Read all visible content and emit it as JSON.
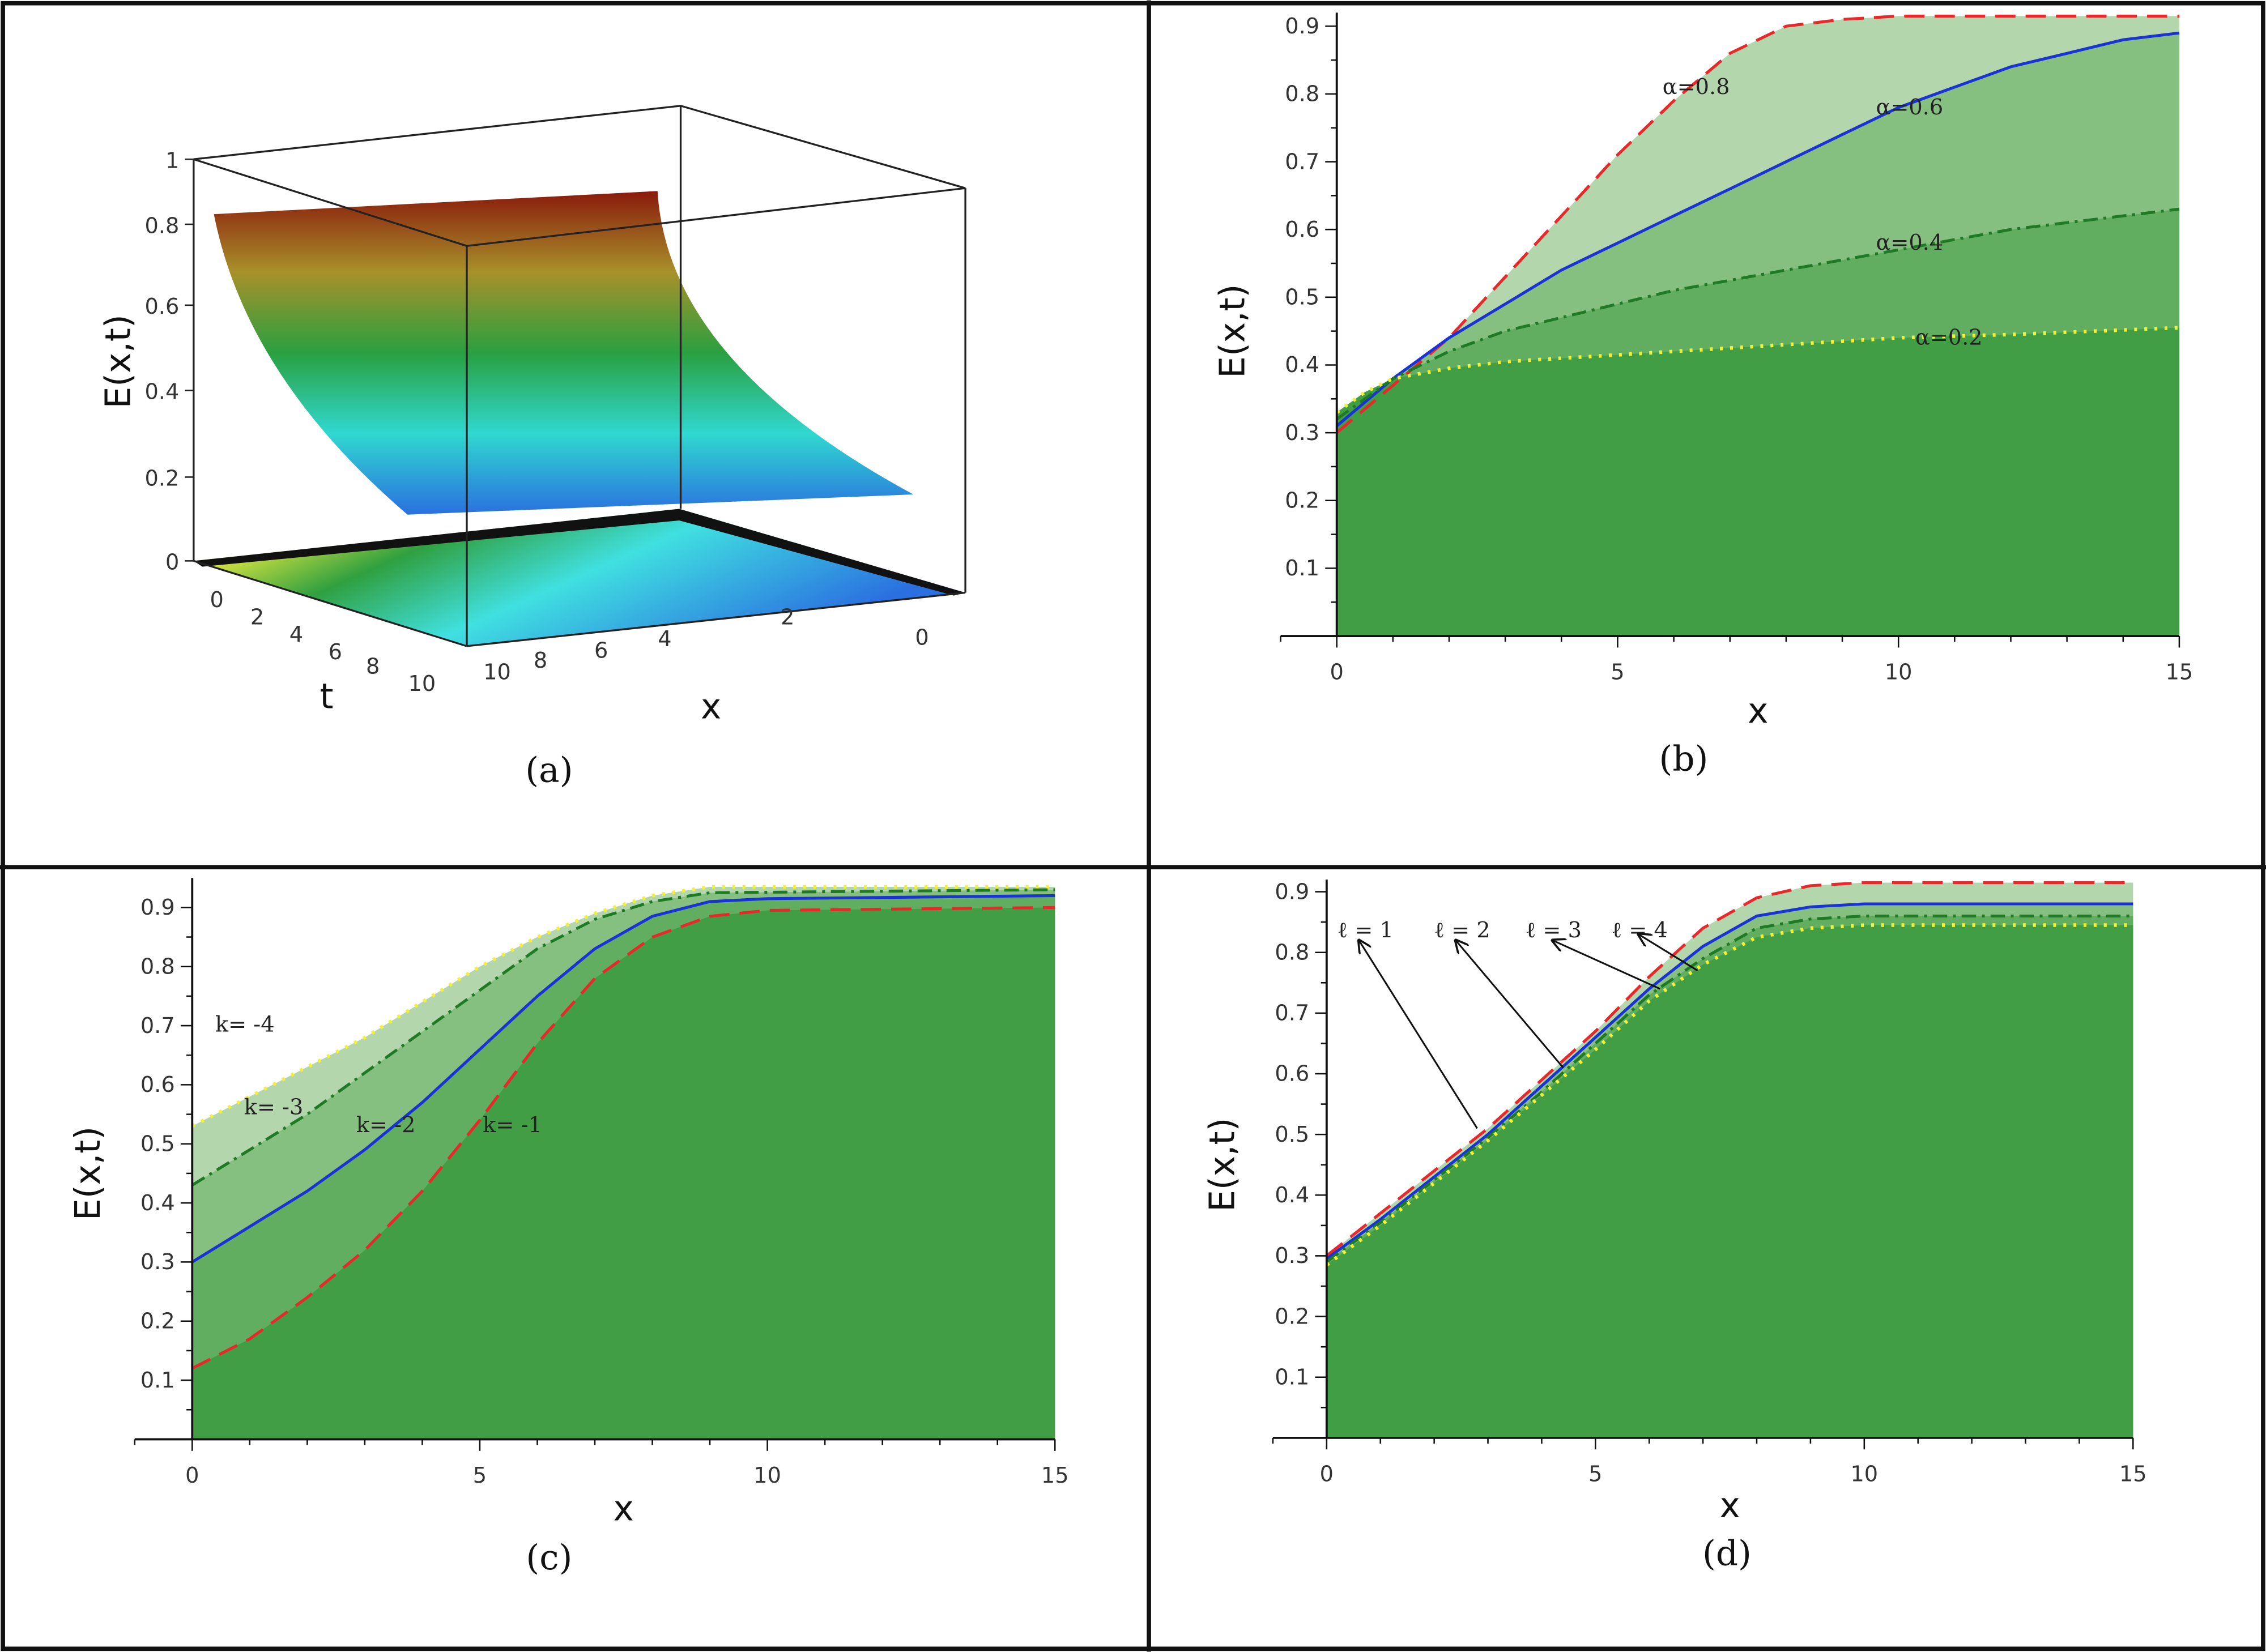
{
  "colors": {
    "base_green": "#419e44",
    "fills": [
      "#b3d6ac",
      "#86c081",
      "#62ae61",
      "#419e44"
    ],
    "red": "#e8282a",
    "blue": "#1a33d6",
    "green": "#1f7a25",
    "yellow": "#f3f03a"
  },
  "chart_data": [
    {
      "panel": "a",
      "type": "surface3d",
      "caption": "(a)",
      "zlabel": "E(x,t)",
      "xlabel": "x",
      "tlabel": "t",
      "zticks": [
        "0",
        "0.2",
        "0.4",
        "0.6",
        "0.8",
        "1"
      ],
      "tticks": [
        "0",
        "2",
        "4",
        "6",
        "8",
        "10"
      ],
      "xticks": [
        "10",
        "8",
        "6",
        "4",
        "2",
        "0"
      ],
      "zlim": [
        0,
        1
      ],
      "xlim": [
        0,
        10
      ],
      "tlim": [
        0,
        10
      ]
    },
    {
      "panel": "b",
      "type": "area",
      "caption": "(b)",
      "xlabel": "x",
      "ylabel": "E(x,t)",
      "xlim": [
        0,
        15
      ],
      "ylim": [
        0,
        0.92
      ],
      "xticks": [
        0,
        5,
        10,
        15
      ],
      "yticks": [
        0.1,
        0.2,
        0.3,
        0.4,
        0.5,
        0.6,
        0.7,
        0.8,
        0.9
      ],
      "series": [
        {
          "name": "α=0.8",
          "style": "dash",
          "color": "red",
          "label_at": [
            5.8,
            0.8
          ],
          "points": [
            [
              0,
              0.3
            ],
            [
              1,
              0.37
            ],
            [
              2,
              0.44
            ],
            [
              3,
              0.53
            ],
            [
              4,
              0.62
            ],
            [
              5,
              0.71
            ],
            [
              6,
              0.79
            ],
            [
              7,
              0.86
            ],
            [
              8,
              0.9
            ],
            [
              9,
              0.91
            ],
            [
              10,
              0.915
            ],
            [
              15,
              0.915
            ]
          ]
        },
        {
          "name": "α=0.6",
          "style": "solid",
          "color": "blue",
          "label_at": [
            9.6,
            0.77
          ],
          "points": [
            [
              0,
              0.31
            ],
            [
              1,
              0.38
            ],
            [
              2,
              0.44
            ],
            [
              3,
              0.49
            ],
            [
              4,
              0.54
            ],
            [
              5,
              0.58
            ],
            [
              6,
              0.62
            ],
            [
              7,
              0.66
            ],
            [
              8,
              0.7
            ],
            [
              9,
              0.74
            ],
            [
              10,
              0.78
            ],
            [
              11,
              0.81
            ],
            [
              12,
              0.84
            ],
            [
              13,
              0.86
            ],
            [
              14,
              0.88
            ],
            [
              15,
              0.89
            ]
          ]
        },
        {
          "name": "α=0.4",
          "style": "dashdot",
          "color": "green",
          "label_at": [
            9.6,
            0.57
          ],
          "points": [
            [
              0,
              0.32
            ],
            [
              1,
              0.38
            ],
            [
              2,
              0.42
            ],
            [
              3,
              0.45
            ],
            [
              4,
              0.47
            ],
            [
              5,
              0.49
            ],
            [
              6,
              0.51
            ],
            [
              7,
              0.525
            ],
            [
              8,
              0.54
            ],
            [
              9,
              0.555
            ],
            [
              10,
              0.57
            ],
            [
              11,
              0.585
            ],
            [
              12,
              0.6
            ],
            [
              13,
              0.61
            ],
            [
              14,
              0.62
            ],
            [
              15,
              0.63
            ]
          ]
        },
        {
          "name": "α=0.2",
          "style": "dot",
          "color": "yellow",
          "label_at": [
            10.3,
            0.43
          ],
          "points": [
            [
              0,
              0.33
            ],
            [
              0.5,
              0.36
            ],
            [
              1,
              0.38
            ],
            [
              2,
              0.395
            ],
            [
              3,
              0.405
            ],
            [
              4,
              0.41
            ],
            [
              5,
              0.415
            ],
            [
              6,
              0.42
            ],
            [
              8,
              0.43
            ],
            [
              10,
              0.44
            ],
            [
              12,
              0.445
            ],
            [
              15,
              0.455
            ]
          ]
        }
      ]
    },
    {
      "panel": "c",
      "type": "area",
      "caption": "(c)",
      "xlabel": "x",
      "ylabel": "E(x,t)",
      "xlim": [
        0,
        15
      ],
      "ylim": [
        0,
        0.95
      ],
      "xticks": [
        0,
        5,
        10,
        15
      ],
      "yticks": [
        0.1,
        0.2,
        0.3,
        0.4,
        0.5,
        0.6,
        0.7,
        0.8,
        0.9
      ],
      "series": [
        {
          "name": "k= -4",
          "style": "dot",
          "color": "yellow",
          "label_at": [
            0.4,
            0.69
          ],
          "points": [
            [
              0,
              0.53
            ],
            [
              1,
              0.58
            ],
            [
              2,
              0.63
            ],
            [
              3,
              0.68
            ],
            [
              4,
              0.74
            ],
            [
              5,
              0.8
            ],
            [
              6,
              0.85
            ],
            [
              7,
              0.89
            ],
            [
              8,
              0.92
            ],
            [
              9,
              0.935
            ],
            [
              15,
              0.935
            ]
          ]
        },
        {
          "name": "k= -3",
          "style": "dashdot",
          "color": "green",
          "label_at": [
            0.9,
            0.55
          ],
          "points": [
            [
              0,
              0.43
            ],
            [
              1,
              0.49
            ],
            [
              2,
              0.55
            ],
            [
              3,
              0.62
            ],
            [
              4,
              0.69
            ],
            [
              5,
              0.76
            ],
            [
              6,
              0.83
            ],
            [
              7,
              0.88
            ],
            [
              8,
              0.91
            ],
            [
              9,
              0.925
            ],
            [
              15,
              0.93
            ]
          ]
        },
        {
          "name": "k= -2",
          "style": "solid",
          "color": "blue",
          "label_at": [
            2.6,
            0.52
          ],
          "points": [
            [
              0,
              0.3
            ],
            [
              1,
              0.36
            ],
            [
              2,
              0.42
            ],
            [
              3,
              0.49
            ],
            [
              4,
              0.57
            ],
            [
              5,
              0.66
            ],
            [
              6,
              0.75
            ],
            [
              7,
              0.83
            ],
            [
              8,
              0.885
            ],
            [
              9,
              0.91
            ],
            [
              10,
              0.915
            ],
            [
              15,
              0.92
            ]
          ]
        },
        {
          "name": "k= -1",
          "style": "dash",
          "color": "red",
          "label_at": [
            4.7,
            0.52
          ],
          "points": [
            [
              0,
              0.12
            ],
            [
              1,
              0.17
            ],
            [
              2,
              0.24
            ],
            [
              3,
              0.32
            ],
            [
              4,
              0.42
            ],
            [
              5,
              0.54
            ],
            [
              6,
              0.67
            ],
            [
              7,
              0.78
            ],
            [
              8,
              0.85
            ],
            [
              9,
              0.885
            ],
            [
              10,
              0.895
            ],
            [
              15,
              0.9
            ]
          ]
        }
      ]
    },
    {
      "panel": "d",
      "type": "area",
      "caption": "(d)",
      "xlabel": "x",
      "ylabel": "E(x,t)",
      "xlim": [
        0,
        15
      ],
      "ylim": [
        0,
        0.92
      ],
      "xticks": [
        0,
        5,
        10,
        15
      ],
      "yticks": [
        0.1,
        0.2,
        0.3,
        0.4,
        0.5,
        0.6,
        0.7,
        0.8,
        0.9
      ],
      "series": [
        {
          "name": "ℓ = 1",
          "style": "dash",
          "color": "red",
          "label_at": [
            0.2,
            0.825
          ],
          "arrow_from": [
            2.8,
            0.51
          ],
          "arrow_to": [
            0.6,
            0.82
          ],
          "points": [
            [
              0,
              0.3
            ],
            [
              1,
              0.37
            ],
            [
              2,
              0.44
            ],
            [
              3,
              0.51
            ],
            [
              4,
              0.59
            ],
            [
              5,
              0.67
            ],
            [
              6,
              0.76
            ],
            [
              7,
              0.84
            ],
            [
              8,
              0.89
            ],
            [
              9,
              0.91
            ],
            [
              10,
              0.915
            ],
            [
              15,
              0.915
            ]
          ]
        },
        {
          "name": "ℓ = 2",
          "style": "solid",
          "color": "blue",
          "label_at": [
            2.0,
            0.825
          ],
          "arrow_from": [
            4.4,
            0.61
          ],
          "arrow_to": [
            2.4,
            0.82
          ],
          "points": [
            [
              0,
              0.295
            ],
            [
              1,
              0.36
            ],
            [
              2,
              0.43
            ],
            [
              3,
              0.5
            ],
            [
              4,
              0.58
            ],
            [
              5,
              0.66
            ],
            [
              6,
              0.74
            ],
            [
              7,
              0.81
            ],
            [
              8,
              0.86
            ],
            [
              9,
              0.875
            ],
            [
              10,
              0.88
            ],
            [
              15,
              0.88
            ]
          ]
        },
        {
          "name": "ℓ = 3",
          "style": "dashdot",
          "color": "green",
          "label_at": [
            3.7,
            0.825
          ],
          "arrow_from": [
            6.2,
            0.74
          ],
          "arrow_to": [
            4.2,
            0.82
          ],
          "points": [
            [
              0,
              0.29
            ],
            [
              1,
              0.355
            ],
            [
              2,
              0.425
            ],
            [
              3,
              0.495
            ],
            [
              4,
              0.57
            ],
            [
              5,
              0.65
            ],
            [
              6,
              0.73
            ],
            [
              7,
              0.79
            ],
            [
              8,
              0.84
            ],
            [
              9,
              0.855
            ],
            [
              10,
              0.86
            ],
            [
              15,
              0.86
            ]
          ]
        },
        {
          "name": "ℓ = 4",
          "style": "dot",
          "color": "yellow",
          "label_at": [
            5.3,
            0.825
          ],
          "arrow_from": [
            6.9,
            0.77
          ],
          "arrow_to": [
            5.8,
            0.83
          ],
          "points": [
            [
              0,
              0.285
            ],
            [
              1,
              0.35
            ],
            [
              2,
              0.42
            ],
            [
              3,
              0.49
            ],
            [
              4,
              0.565
            ],
            [
              5,
              0.64
            ],
            [
              6,
              0.72
            ],
            [
              7,
              0.78
            ],
            [
              8,
              0.825
            ],
            [
              9,
              0.84
            ],
            [
              10,
              0.845
            ],
            [
              15,
              0.845
            ]
          ]
        }
      ]
    }
  ]
}
